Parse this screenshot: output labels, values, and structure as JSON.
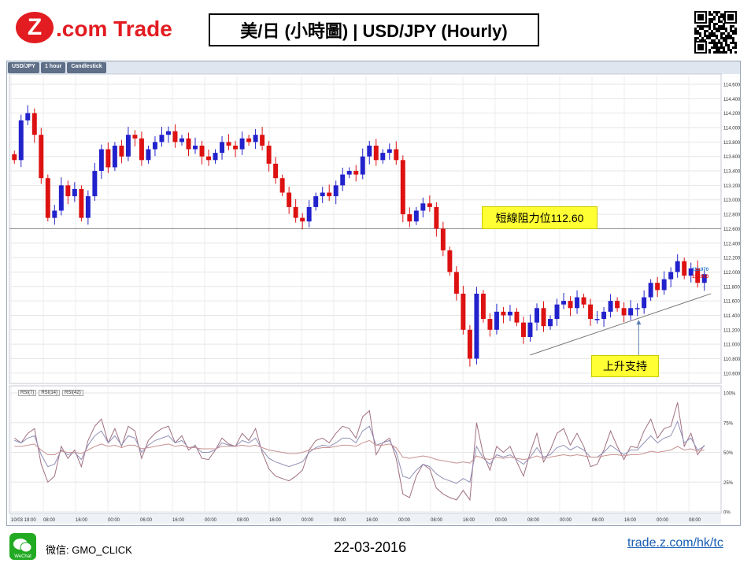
{
  "header": {
    "logo_text": "Z.com Trade",
    "title": "美/日 (小時圖) | USD/JPY (Hourly)"
  },
  "toolbar": {
    "symbol": "USD/JPY",
    "timeframe": "1 hour",
    "style": "Candlestick"
  },
  "chart_data": [
    {
      "type": "candlestick",
      "title": "",
      "symbol": "USD/JPY",
      "interval": "1 hour",
      "y_ticks": [
        "114.600",
        "114.400",
        "114.200",
        "114.000",
        "113.800",
        "113.600",
        "113.400",
        "113.200",
        "113.000",
        "112.800",
        "112.600",
        "112.400",
        "112.200",
        "112.000",
        "111.800",
        "111.600",
        "111.400",
        "111.200",
        "111.000",
        "110.800",
        "110.600"
      ],
      "ylim": [
        110.5,
        114.72
      ],
      "x_ticks": [
        "10/03 19:00",
        "08:00",
        "16:00",
        "00:00",
        "06:00",
        "16:00",
        "00:00",
        "08:00",
        "16:00",
        "00:00",
        "08:00",
        "16:00",
        "00:00",
        "08:00",
        "16:00",
        "00:00",
        "08:00",
        "00:00",
        "06:00",
        "16:00",
        "00:00",
        "08:00"
      ],
      "price_labels": {
        "bid": "111.970",
        "ask": "111.960"
      },
      "up_color": "#2222cc",
      "down_color": "#dd1111",
      "closes": [
        113.55,
        114.1,
        114.2,
        113.9,
        113.3,
        112.75,
        112.85,
        113.2,
        113.05,
        113.15,
        112.75,
        113.05,
        113.4,
        113.7,
        113.45,
        113.75,
        113.6,
        113.9,
        113.85,
        113.55,
        113.7,
        113.8,
        113.9,
        113.95,
        113.8,
        113.85,
        113.7,
        113.75,
        113.6,
        113.55,
        113.65,
        113.8,
        113.75,
        113.7,
        113.85,
        113.8,
        113.9,
        113.75,
        113.5,
        113.3,
        113.1,
        112.9,
        112.75,
        112.7,
        112.9,
        113.05,
        113.1,
        113.05,
        113.2,
        113.35,
        113.4,
        113.35,
        113.6,
        113.75,
        113.55,
        113.65,
        113.7,
        113.55,
        112.8,
        112.7,
        112.85,
        112.95,
        112.9,
        112.6,
        112.3,
        112.0,
        111.7,
        111.2,
        110.8,
        111.7,
        111.35,
        111.2,
        111.45,
        111.4,
        111.45,
        111.3,
        111.1,
        111.3,
        111.5,
        111.25,
        111.35,
        111.55,
        111.6,
        111.5,
        111.65,
        111.55,
        111.35,
        111.35,
        111.45,
        111.6,
        111.5,
        111.4,
        111.5,
        111.5,
        111.65,
        111.85,
        111.75,
        111.9,
        112.0,
        112.15,
        111.95,
        112.05,
        111.85,
        111.97
      ],
      "resistance": {
        "value": 112.6,
        "label": "短線阻力位112.60"
      },
      "support": {
        "label": "上升支持",
        "from": {
          "x_index": 77,
          "y": 110.85
        },
        "to": {
          "x_index": 104,
          "y": 111.7
        }
      }
    },
    {
      "type": "line",
      "title": "",
      "y_ticks": [
        "100%",
        "75%",
        "50%",
        "25%",
        "0%"
      ],
      "ylim": [
        0,
        100
      ],
      "series": [
        {
          "name": "RSI(7)",
          "color": "#a07080",
          "values": [
            62,
            58,
            66,
            70,
            40,
            25,
            30,
            55,
            45,
            52,
            38,
            60,
            72,
            78,
            58,
            70,
            55,
            72,
            68,
            45,
            60,
            66,
            70,
            72,
            58,
            64,
            52,
            56,
            45,
            44,
            52,
            62,
            57,
            55,
            66,
            60,
            70,
            50,
            36,
            30,
            28,
            26,
            30,
            35,
            52,
            60,
            62,
            58,
            66,
            72,
            70,
            62,
            80,
            85,
            48,
            58,
            62,
            45,
            15,
            12,
            30,
            40,
            36,
            20,
            15,
            12,
            10,
            18,
            10,
            75,
            48,
            35,
            55,
            50,
            55,
            42,
            30,
            50,
            66,
            42,
            52,
            66,
            70,
            56,
            66,
            55,
            38,
            40,
            52,
            68,
            55,
            44,
            55,
            54,
            68,
            78,
            62,
            70,
            72,
            92,
            55,
            66,
            48,
            56
          ]
        },
        {
          "name": "RSI(14)",
          "color": "#9090b8",
          "values": [
            60,
            58,
            62,
            64,
            48,
            38,
            40,
            52,
            48,
            50,
            44,
            56,
            64,
            68,
            58,
            64,
            56,
            64,
            62,
            50,
            56,
            60,
            62,
            64,
            58,
            60,
            54,
            55,
            50,
            50,
            52,
            58,
            56,
            55,
            60,
            58,
            62,
            52,
            45,
            42,
            40,
            38,
            40,
            42,
            50,
            54,
            56,
            55,
            58,
            62,
            62,
            58,
            68,
            72,
            56,
            58,
            60,
            50,
            30,
            28,
            35,
            40,
            38,
            32,
            28,
            26,
            24,
            28,
            25,
            55,
            45,
            40,
            48,
            46,
            48,
            44,
            40,
            46,
            54,
            46,
            48,
            54,
            56,
            52,
            55,
            52,
            46,
            46,
            50,
            56,
            52,
            48,
            52,
            52,
            58,
            64,
            58,
            62,
            64,
            76,
            58,
            62,
            52,
            55
          ]
        },
        {
          "name": "RSI(42)",
          "color": "#c89090",
          "values": [
            55,
            55,
            56,
            57,
            52,
            48,
            48,
            51,
            50,
            50,
            49,
            52,
            55,
            57,
            55,
            56,
            54,
            56,
            56,
            53,
            54,
            55,
            56,
            57,
            55,
            56,
            54,
            54,
            53,
            53,
            53,
            55,
            55,
            55,
            56,
            55,
            56,
            54,
            52,
            51,
            50,
            49,
            49,
            50,
            52,
            53,
            54,
            54,
            55,
            56,
            56,
            55,
            58,
            60,
            56,
            56,
            57,
            54,
            46,
            45,
            46,
            47,
            46,
            44,
            43,
            42,
            41,
            42,
            41,
            47,
            45,
            44,
            46,
            45,
            46,
            45,
            44,
            45,
            47,
            45,
            46,
            47,
            48,
            47,
            48,
            47,
            46,
            46,
            47,
            48,
            48,
            47,
            48,
            48,
            49,
            51,
            50,
            51,
            52,
            55,
            52,
            53,
            51,
            52
          ]
        }
      ]
    }
  ],
  "footer": {
    "wechat_icon": "wechat-icon",
    "wechat_app_label": "WeChat",
    "wechat": "微信: GMO_CLICK",
    "date": "22-03-2016",
    "site": "trade.z.com/hk/tc"
  }
}
